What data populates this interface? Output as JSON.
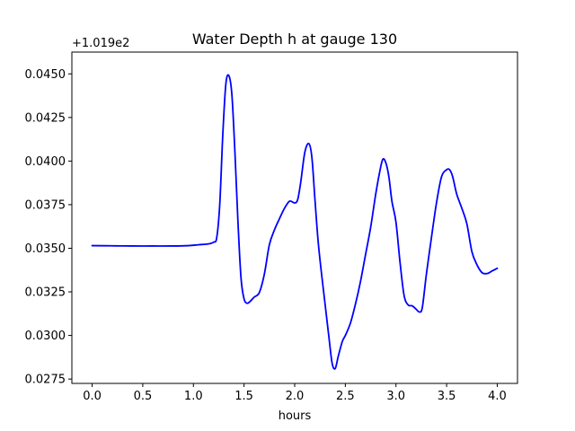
{
  "chart_data": {
    "type": "line",
    "title": "Water Depth h at gauge 130",
    "xlabel": "hours",
    "ylabel": "",
    "y_offset_label": "+1.019e2",
    "xlim": [
      -0.2,
      4.2
    ],
    "ylim": [
      0.02725,
      0.04625
    ],
    "x_ticks": [
      0.0,
      0.5,
      1.0,
      1.5,
      2.0,
      2.5,
      3.0,
      3.5,
      4.0
    ],
    "x_tick_labels": [
      "0.0",
      "0.5",
      "1.0",
      "1.5",
      "2.0",
      "2.5",
      "3.0",
      "3.5",
      "4.0"
    ],
    "y_ticks": [
      0.0275,
      0.03,
      0.0325,
      0.035,
      0.0375,
      0.04,
      0.0425,
      0.045
    ],
    "y_tick_labels": [
      "0.0275",
      "0.0300",
      "0.0325",
      "0.0350",
      "0.0375",
      "0.0400",
      "0.0425",
      "0.0450"
    ],
    "grid": false,
    "series": [
      {
        "color": "#0000ff",
        "x": [
          0.0,
          0.2,
          0.4,
          0.6,
          0.8,
          0.95,
          1.05,
          1.15,
          1.2,
          1.23,
          1.26,
          1.29,
          1.32,
          1.35,
          1.38,
          1.41,
          1.44,
          1.47,
          1.5,
          1.53,
          1.56,
          1.6,
          1.65,
          1.7,
          1.75,
          1.8,
          1.85,
          1.9,
          1.95,
          2.0,
          2.03,
          2.06,
          2.1,
          2.14,
          2.17,
          2.2,
          2.23,
          2.26,
          2.3,
          2.34,
          2.37,
          2.4,
          2.43,
          2.47,
          2.5,
          2.55,
          2.6,
          2.65,
          2.7,
          2.75,
          2.8,
          2.84,
          2.87,
          2.9,
          2.93,
          2.96,
          3.0,
          3.04,
          3.08,
          3.12,
          3.16,
          3.2,
          3.23,
          3.26,
          3.3,
          3.35,
          3.4,
          3.45,
          3.5,
          3.53,
          3.56,
          3.6,
          3.65,
          3.7,
          3.75,
          3.8,
          3.85,
          3.9,
          3.95,
          4.0
        ],
        "y": [
          0.03515,
          0.03514,
          0.03513,
          0.03513,
          0.03513,
          0.03515,
          0.0352,
          0.03525,
          0.03535,
          0.0356,
          0.0375,
          0.0415,
          0.0444,
          0.0449,
          0.0438,
          0.0405,
          0.0365,
          0.0333,
          0.0321,
          0.03185,
          0.03195,
          0.0322,
          0.03245,
          0.0335,
          0.0352,
          0.03605,
          0.0367,
          0.0373,
          0.0377,
          0.0376,
          0.0378,
          0.0388,
          0.0405,
          0.041,
          0.0402,
          0.0378,
          0.0355,
          0.0338,
          0.0318,
          0.0298,
          0.0284,
          0.0281,
          0.0288,
          0.02965,
          0.03,
          0.0307,
          0.0318,
          0.0331,
          0.03465,
          0.0362,
          0.0381,
          0.0394,
          0.0401,
          0.0399,
          0.0391,
          0.0377,
          0.0365,
          0.0342,
          0.0323,
          0.03175,
          0.0317,
          0.0315,
          0.03135,
          0.0316,
          0.0335,
          0.0356,
          0.0376,
          0.0391,
          0.0395,
          0.0395,
          0.0391,
          0.0381,
          0.0373,
          0.0364,
          0.0348,
          0.03405,
          0.0336,
          0.03355,
          0.0337,
          0.03385
        ]
      }
    ]
  }
}
